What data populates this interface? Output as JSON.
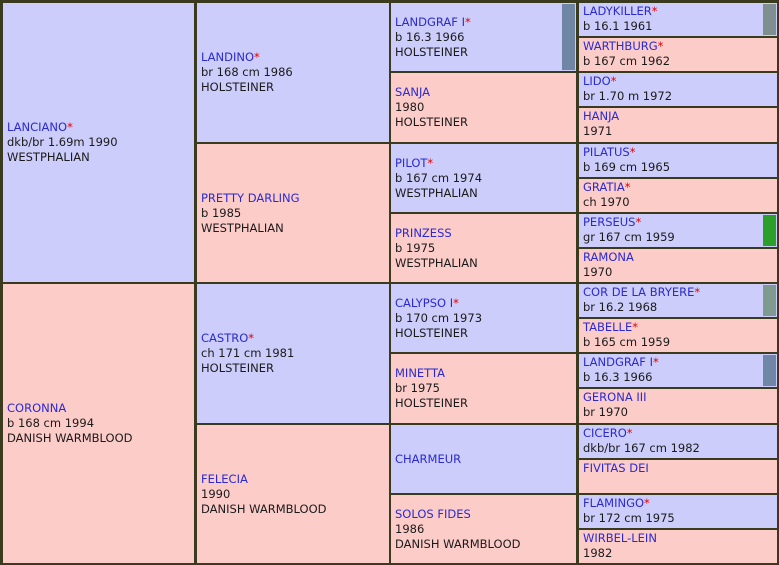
{
  "pedigree": {
    "sire": {
      "name": "LANCIANO",
      "star": true,
      "details": "dkb/br 1.69m 1990",
      "breed": "WESTPHALIAN"
    },
    "dam": {
      "name": "CORONNA",
      "star": false,
      "details": "b 168 cm 1994",
      "breed": "DANISH WARMBLOOD"
    },
    "gen2": [
      {
        "name": "LANDINO",
        "star": true,
        "details": "br 168 cm 1986",
        "breed": "HOLSTEINER"
      },
      {
        "name": "PRETTY DARLING",
        "star": false,
        "details": "b 1985",
        "breed": "WESTPHALIAN"
      },
      {
        "name": "CASTRO",
        "star": true,
        "details": "ch 171 cm 1981",
        "breed": "HOLSTEINER"
      },
      {
        "name": "FELECIA",
        "star": false,
        "details": "1990",
        "breed": "DANISH WARMBLOOD"
      }
    ],
    "gen3": [
      {
        "name": "LANDGRAF I",
        "star": true,
        "details": "b 16.3 1966",
        "breed": "HOLSTEINER"
      },
      {
        "name": "SANJA",
        "star": false,
        "details": "1980",
        "breed": "HOLSTEINER"
      },
      {
        "name": "PILOT",
        "star": true,
        "details": "b 167 cm 1974",
        "breed": "WESTPHALIAN"
      },
      {
        "name": "PRINZESS",
        "star": false,
        "details": "b 1975",
        "breed": "WESTPHALIAN"
      },
      {
        "name": "CALYPSO I",
        "star": true,
        "details": "b 170 cm 1973",
        "breed": "HOLSTEINER"
      },
      {
        "name": "MINETTA",
        "star": false,
        "details": "br 1975",
        "breed": "HOLSTEINER"
      },
      {
        "name": "CHARMEUR",
        "star": false,
        "details": "",
        "breed": ""
      },
      {
        "name": "SOLOS FIDES",
        "star": false,
        "details": "1986",
        "breed": "DANISH WARMBLOOD"
      }
    ],
    "gen4": [
      {
        "name": "LADYKILLER",
        "star": true,
        "details": "b 16.1 1961"
      },
      {
        "name": "WARTHBURG",
        "star": true,
        "details": "b 167 cm 1962"
      },
      {
        "name": "LIDO",
        "star": true,
        "details": "br 1.70 m 1972"
      },
      {
        "name": "HANJA",
        "star": false,
        "details": "1971"
      },
      {
        "name": "PILATUS",
        "star": true,
        "details": "b 169 cm 1965"
      },
      {
        "name": "GRATIA",
        "star": true,
        "details": "ch 1970"
      },
      {
        "name": "PERSEUS",
        "star": true,
        "details": "gr 167 cm 1959"
      },
      {
        "name": "RAMONA",
        "star": false,
        "details": "1970"
      },
      {
        "name": "COR DE LA BRYERE",
        "star": true,
        "details": "br 16.2 1968"
      },
      {
        "name": "TABELLE",
        "star": true,
        "details": "b 165 cm 1959"
      },
      {
        "name": "LANDGRAF I",
        "star": true,
        "details": "b 16.3 1966"
      },
      {
        "name": "GERONA III",
        "star": false,
        "details": "br 1970"
      },
      {
        "name": "CICERO",
        "star": true,
        "details": "dkb/br 167 cm 1982"
      },
      {
        "name": "FIVITAS DEI",
        "star": false,
        "details": ""
      },
      {
        "name": "FLAMINGO",
        "star": true,
        "details": "br 172 cm 1975"
      },
      {
        "name": "WIRBEL-LEIN",
        "star": false,
        "details": "1982"
      }
    ]
  },
  "colors": {
    "male": "#cccdfb",
    "female": "#fcccc9",
    "name": "#2a2ad0",
    "star": "#e00000",
    "border": "#3a3a1e"
  },
  "marker_colors": {
    "LANDGRAF I": "#6f86a6",
    "LADYKILLER": "#7f8f8f",
    "PERSEUS": "#2aa02a",
    "COR DE LA BRYERE": "#7f9a8f",
    "LANDGRAF I (gen4)": "#6f86a6"
  }
}
